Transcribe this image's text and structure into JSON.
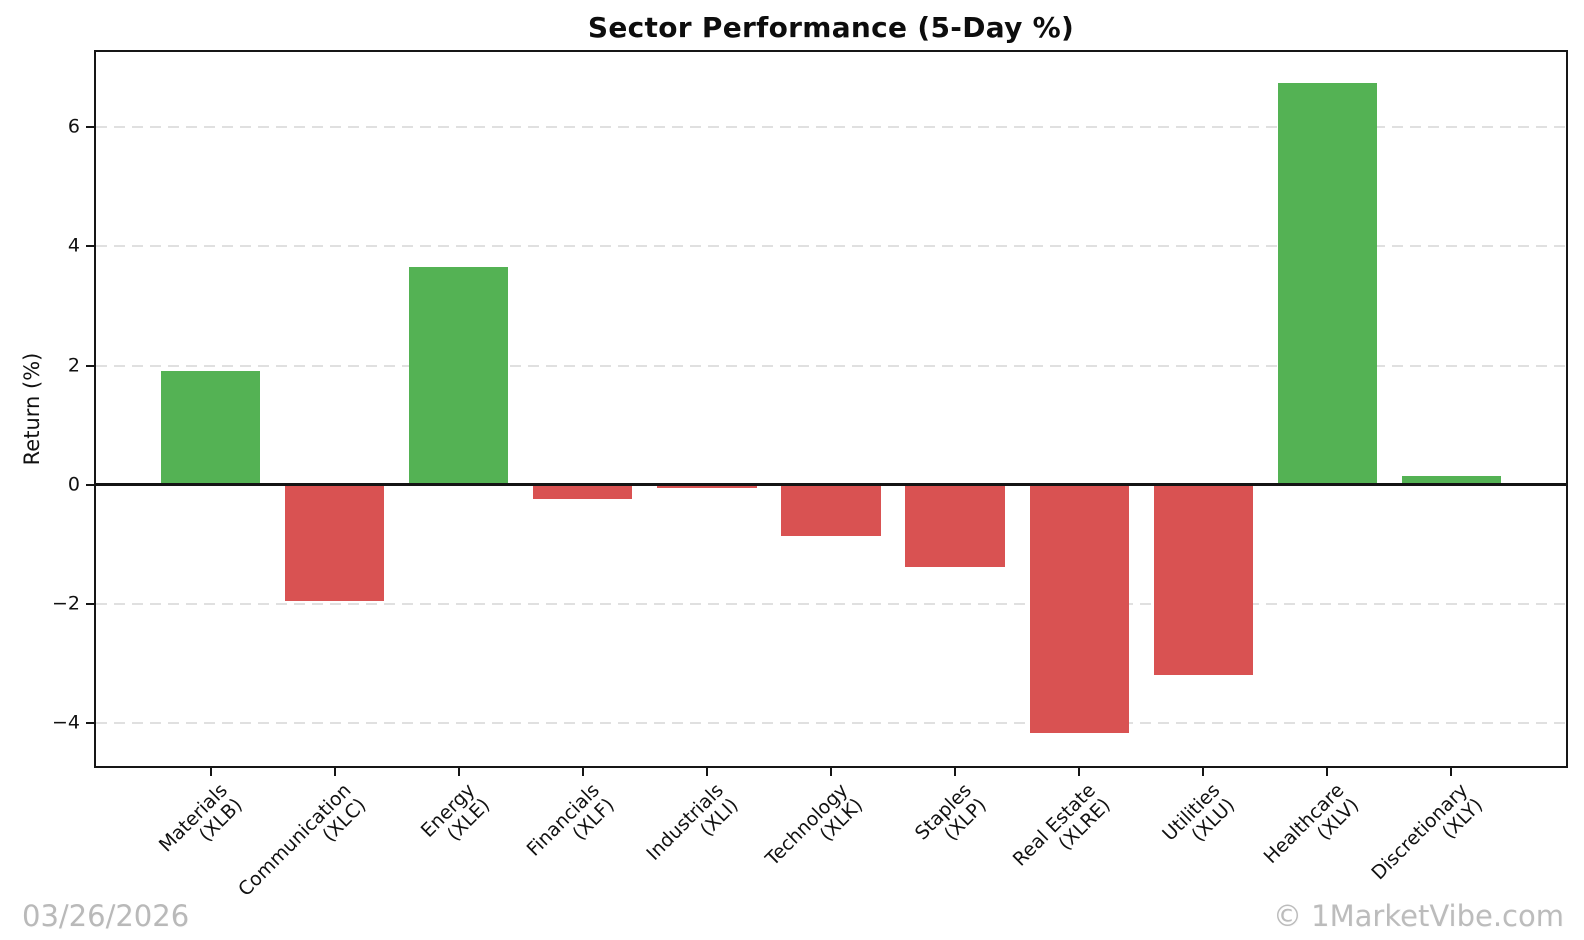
{
  "chart_data": {
    "type": "bar",
    "title": "Sector Performance (5-Day %)",
    "ylabel": "Return (%)",
    "xlabel": "",
    "categories": [
      {
        "sector": "Materials",
        "ticker": "(XLB)"
      },
      {
        "sector": "Communication",
        "ticker": "(XLC)"
      },
      {
        "sector": "Energy",
        "ticker": "(XLE)"
      },
      {
        "sector": "Financials",
        "ticker": "(XLF)"
      },
      {
        "sector": "Industrials",
        "ticker": "(XLI)"
      },
      {
        "sector": "Technology",
        "ticker": "(XLK)"
      },
      {
        "sector": "Staples",
        "ticker": "(XLP)"
      },
      {
        "sector": "Real Estate",
        "ticker": "(XLRE)"
      },
      {
        "sector": "Utilities",
        "ticker": "(XLU)"
      },
      {
        "sector": "Healthcare",
        "ticker": "(XLV)"
      },
      {
        "sector": "Discretionary",
        "ticker": "(XLY)"
      }
    ],
    "values": [
      1.91,
      -1.95,
      3.66,
      -0.24,
      -0.05,
      -0.86,
      -1.38,
      -4.17,
      -3.2,
      6.75,
      0.14
    ],
    "yticks": [
      6,
      4,
      2,
      0,
      -2,
      -4
    ],
    "ylim": [
      -4.76,
      7.3
    ],
    "xlim": [
      -0.94,
      10.94
    ],
    "bar_width": 0.8,
    "grid": "horizontal-dashed",
    "legend": "none",
    "colors": {
      "positive": "#54b254",
      "negative": "#d95252",
      "gridline": "#e0e0e0",
      "axis": "#161616"
    }
  },
  "footer": {
    "date": "03/26/2026",
    "credit": "© 1MarketVibe.com"
  }
}
